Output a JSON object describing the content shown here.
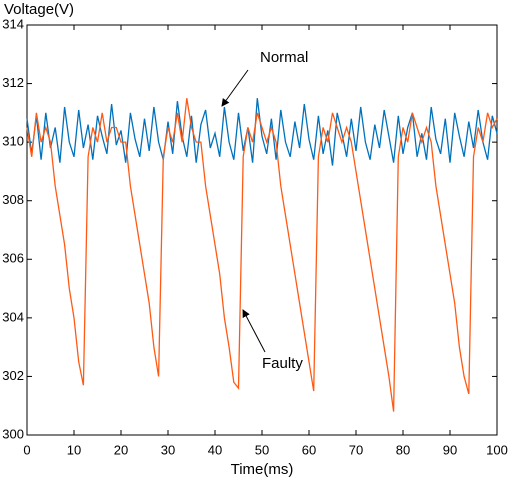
{
  "chart_data": {
    "type": "line",
    "y_label": "Voltage(V)",
    "x_label": "Time(ms)",
    "annotations": [
      "Normal",
      "Faulty"
    ],
    "x": [
      0,
      1,
      2,
      3,
      4,
      5,
      6,
      7,
      8,
      9,
      10,
      11,
      12,
      13,
      14,
      15,
      16,
      17,
      18,
      19,
      20,
      21,
      22,
      23,
      24,
      25,
      26,
      27,
      28,
      29,
      30,
      31,
      32,
      33,
      34,
      35,
      36,
      37,
      38,
      39,
      40,
      41,
      42,
      43,
      44,
      45,
      46,
      47,
      48,
      49,
      50,
      51,
      52,
      53,
      54,
      55,
      56,
      57,
      58,
      59,
      60,
      61,
      62,
      63,
      64,
      65,
      66,
      67,
      68,
      69,
      70,
      71,
      72,
      73,
      74,
      75,
      76,
      77,
      78,
      79,
      80,
      81,
      82,
      83,
      84,
      85,
      86,
      87,
      88,
      89,
      90,
      91,
      92,
      93,
      94,
      95,
      96,
      97,
      98,
      99,
      100
    ],
    "series": [
      {
        "name": "Normal",
        "color": "#0072bd",
        "values": [
          310.8,
          309.6,
          310.9,
          309.4,
          311.0,
          309.8,
          310.5,
          309.3,
          311.2,
          310.0,
          309.5,
          311.1,
          309.8,
          310.6,
          309.4,
          310.9,
          310.2,
          309.6,
          311.3,
          309.9,
          310.4,
          309.3,
          311.0,
          310.1,
          309.5,
          310.8,
          309.7,
          311.2,
          310.0,
          309.4,
          310.7,
          309.6,
          311.4,
          310.2,
          309.5,
          310.9,
          309.3,
          310.6,
          311.1,
          309.8,
          310.3,
          309.5,
          311.2,
          310.0,
          309.4,
          311.0,
          309.7,
          310.5,
          309.3,
          311.5,
          310.2,
          309.6,
          310.8,
          309.4,
          311.1,
          310.0,
          309.5,
          310.7,
          309.8,
          311.3,
          310.1,
          309.4,
          310.9,
          309.6,
          310.4,
          309.2,
          311.0,
          310.3,
          309.5,
          310.8,
          309.7,
          311.2,
          310.0,
          309.4,
          310.6,
          309.8,
          311.1,
          310.2,
          309.3,
          310.9,
          309.6,
          310.5,
          311.0,
          309.5,
          310.3,
          309.4,
          311.2,
          310.1,
          309.6,
          310.8,
          309.3,
          311.0,
          310.2,
          309.5,
          310.7,
          309.8,
          311.1,
          310.0,
          309.4,
          310.9,
          310.3
        ]
      },
      {
        "name": "Faulty",
        "color": "#ff5a14",
        "values": [
          310.5,
          309.5,
          311,
          310,
          310.5,
          310,
          308.5,
          307.5,
          306.5,
          305,
          304,
          302.5,
          301.7,
          309.5,
          310.5,
          310,
          311,
          310,
          310.5,
          310.5,
          310,
          310,
          308.5,
          307.5,
          306.5,
          305.5,
          304.5,
          303,
          302,
          309.5,
          310.5,
          310,
          311,
          310,
          311.5,
          310.5,
          310,
          310,
          308.5,
          307.5,
          306.5,
          305.5,
          304,
          303,
          301.8,
          301.6,
          309.5,
          310.5,
          310,
          311,
          310.5,
          310,
          310.5,
          310,
          308.5,
          307.5,
          306.5,
          305.5,
          304.5,
          303.5,
          302.5,
          301.5,
          309.5,
          310.5,
          310,
          311,
          310.5,
          310,
          310.5,
          310,
          309,
          308,
          307,
          306,
          305,
          304,
          303,
          302,
          300.8,
          309.5,
          310.5,
          310,
          311,
          310.5,
          310,
          310.5,
          310,
          308.5,
          307.5,
          306.5,
          305.5,
          304.5,
          303,
          302,
          301.4,
          309.5,
          310.5,
          310,
          311,
          310.5,
          310.8
        ]
      }
    ],
    "xlim": [
      0,
      100
    ],
    "xticks": [
      0,
      10,
      20,
      30,
      40,
      50,
      60,
      70,
      80,
      90,
      100
    ],
    "ylim": [
      300,
      314
    ],
    "yticks": [
      300,
      302,
      304,
      306,
      308,
      310,
      312,
      314
    ],
    "grid": false
  }
}
